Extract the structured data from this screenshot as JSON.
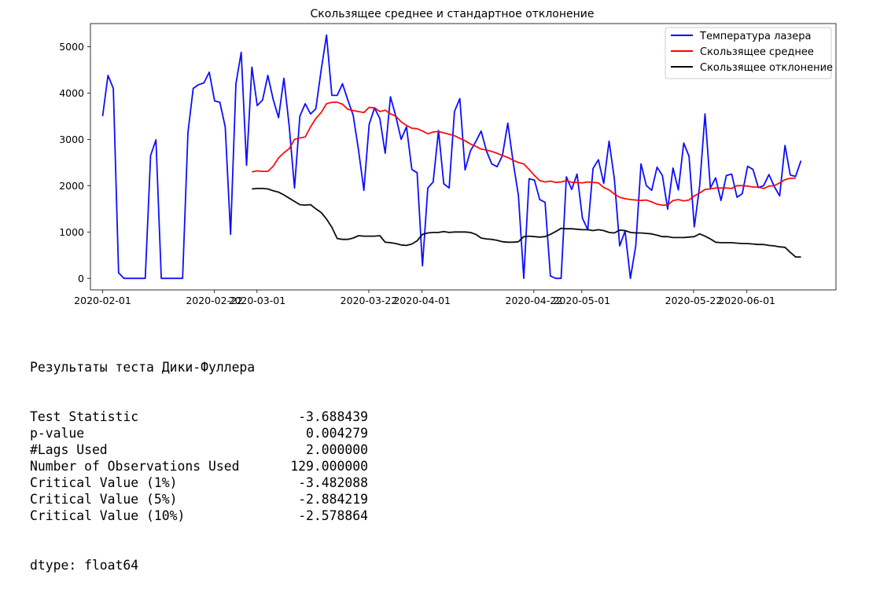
{
  "chart_data": {
    "type": "line",
    "title": "Скользящее среднее и стандартное отклонение",
    "xlabel": "",
    "ylabel": "",
    "x_start": "2020-02-01",
    "x_ticks": [
      "2020-02-01",
      "2020-02-22",
      "2020-03-01",
      "2020-03-22",
      "2020-04-01",
      "2020-04-22",
      "2020-05-01",
      "2020-05-22",
      "2020-06-01"
    ],
    "y_ticks": [
      0,
      1000,
      2000,
      3000,
      4000,
      5000
    ],
    "ylim": [
      -250,
      5500
    ],
    "legend_position": "top-right",
    "grid": false,
    "series": [
      {
        "name": "Температура лазера",
        "color": "#0000ff",
        "values": [
          3500,
          4380,
          4100,
          120,
          0,
          0,
          0,
          0,
          0,
          2650,
          2990,
          0,
          0,
          0,
          0,
          0,
          3150,
          4100,
          4180,
          4220,
          4450,
          3830,
          3800,
          3270,
          950,
          4200,
          4880,
          2440,
          4560,
          3730,
          3850,
          4380,
          3860,
          3470,
          4320,
          3280,
          1950,
          3500,
          3770,
          3550,
          3660,
          4500,
          5250,
          3950,
          3950,
          4200,
          3850,
          3520,
          2770,
          1900,
          3320,
          3680,
          3450,
          2700,
          3920,
          3500,
          3000,
          3270,
          2350,
          2280,
          270,
          1950,
          2080,
          3190,
          2040,
          1950,
          3600,
          3880,
          2340,
          2750,
          2950,
          3180,
          2750,
          2470,
          2410,
          2650,
          3350,
          2510,
          1790,
          0,
          2150,
          2120,
          1700,
          1640,
          50,
          0,
          0,
          2190,
          1920,
          2250,
          1300,
          1050,
          2370,
          2560,
          2050,
          2960,
          2150,
          700,
          1020,
          0,
          700,
          2470,
          2000,
          1900,
          2400,
          2220,
          1490,
          2380,
          1910,
          2920,
          2640,
          1110,
          2000,
          3550,
          1950,
          2170,
          1680,
          2220,
          2250,
          1750,
          1830,
          2420,
          2350,
          1960,
          2000,
          2240,
          1980,
          1780,
          2870,
          2230,
          2200,
          2540
        ]
      },
      {
        "name": "Скользящее среднее",
        "color": "#ff0000",
        "start_index": 28,
        "values": [
          2300,
          2320,
          2310,
          2310,
          2420,
          2600,
          2710,
          2800,
          3000,
          3030,
          3050,
          3270,
          3450,
          3580,
          3770,
          3800,
          3800,
          3760,
          3650,
          3620,
          3600,
          3580,
          3690,
          3680,
          3600,
          3630,
          3550,
          3500,
          3380,
          3300,
          3240,
          3230,
          3180,
          3120,
          3160,
          3170,
          3140,
          3110,
          3080,
          3020,
          2970,
          2900,
          2850,
          2790,
          2770,
          2740,
          2700,
          2650,
          2610,
          2550,
          2500,
          2470,
          2350,
          2220,
          2110,
          2080,
          2100,
          2070,
          2080,
          2110,
          2070,
          2070,
          2060,
          2080,
          2070,
          2060,
          1960,
          1910,
          1820,
          1750,
          1720,
          1700,
          1690,
          1680,
          1690,
          1650,
          1600,
          1580,
          1580,
          1680,
          1700,
          1670,
          1690,
          1780,
          1840,
          1920,
          1930,
          1950,
          1950,
          1950,
          1940,
          2000,
          2000,
          1990,
          1970,
          1970,
          1940,
          1990,
          2000,
          2060,
          2130,
          2160,
          2160
        ]
      },
      {
        "name": "Скользящее отклонение",
        "color": "#000000",
        "start_index": 28,
        "values": [
          1930,
          1940,
          1940,
          1930,
          1890,
          1860,
          1800,
          1730,
          1660,
          1590,
          1580,
          1590,
          1500,
          1420,
          1280,
          1100,
          860,
          840,
          840,
          870,
          920,
          910,
          910,
          910,
          920,
          780,
          770,
          750,
          720,
          710,
          740,
          810,
          950,
          980,
          990,
          990,
          1010,
          990,
          1000,
          1000,
          1000,
          990,
          950,
          870,
          850,
          840,
          820,
          790,
          780,
          780,
          790,
          900,
          910,
          900,
          890,
          900,
          950,
          1010,
          1080,
          1070,
          1070,
          1060,
          1050,
          1050,
          1030,
          1050,
          1030,
          990,
          980,
          1040,
          1030,
          990,
          980,
          980,
          970,
          960,
          930,
          900,
          900,
          880,
          880,
          880,
          890,
          900,
          960,
          910,
          850,
          780,
          770,
          770,
          770,
          760,
          750,
          750,
          740,
          730,
          730,
          710,
          700,
          680,
          670,
          560,
          460,
          460
        ]
      }
    ]
  },
  "output": {
    "header": "Результаты теста Дики-Фуллера",
    "rows": [
      {
        "label": "Test Statistic",
        "value": "-3.688439"
      },
      {
        "label": "p-value",
        "value": "0.004279"
      },
      {
        "label": "#Lags Used",
        "value": "2.000000"
      },
      {
        "label": "Number of Observations Used",
        "value": "129.000000"
      },
      {
        "label": "Critical Value (1%)",
        "value": "-3.482088"
      },
      {
        "label": "Critical Value (5%)",
        "value": "-2.884219"
      },
      {
        "label": "Critical Value (10%)",
        "value": "-2.578864"
      }
    ],
    "footer": "dtype: float64"
  }
}
